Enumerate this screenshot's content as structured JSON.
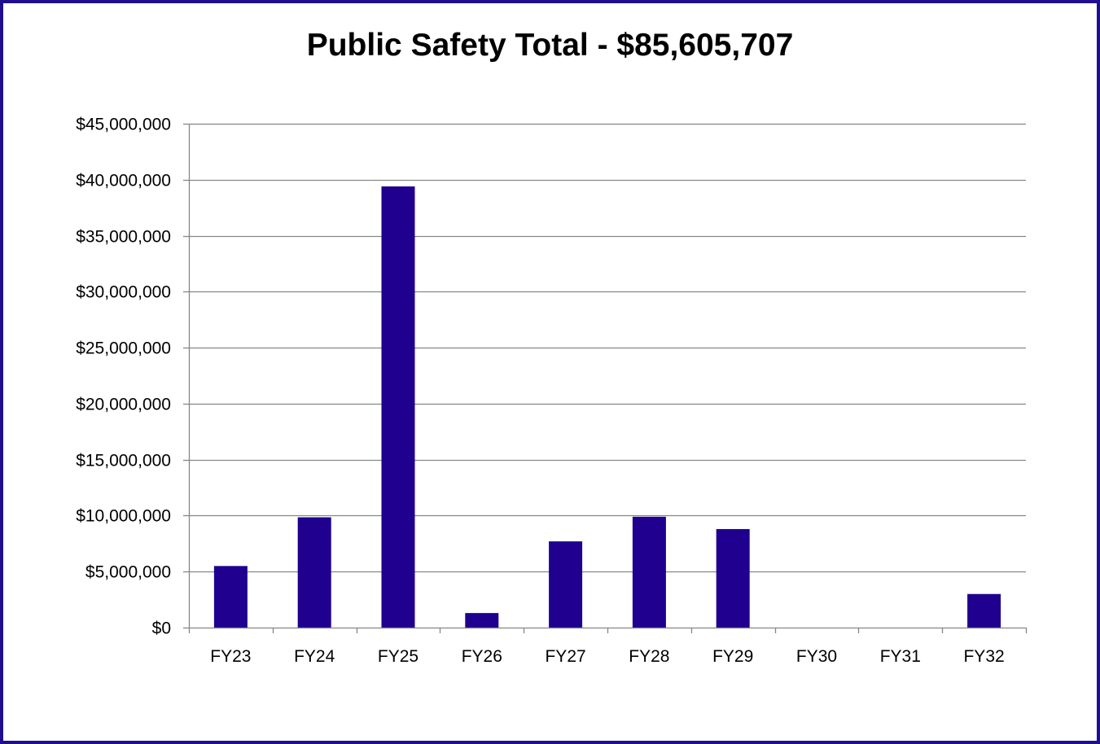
{
  "chart_data": {
    "type": "bar",
    "title": "Public Safety Total - $85,605,707",
    "xlabel": "",
    "ylabel": "",
    "categories": [
      "FY23",
      "FY24",
      "FY25",
      "FY26",
      "FY27",
      "FY28",
      "FY29",
      "FY30",
      "FY31",
      "FY32"
    ],
    "values": [
      5500000,
      9850000,
      39400000,
      1300000,
      7700000,
      9900000,
      8800000,
      0,
      0,
      3000000
    ],
    "ylim": [
      0,
      45000000
    ],
    "y_ticks": [
      "$0",
      "$5,000,000",
      "$10,000,000",
      "$15,000,000",
      "$20,000,000",
      "$25,000,000",
      "$30,000,000",
      "$35,000,000",
      "$40,000,000",
      "$45,000,000"
    ],
    "y_tick_values": [
      0,
      5000000,
      10000000,
      15000000,
      20000000,
      25000000,
      30000000,
      35000000,
      40000000,
      45000000
    ],
    "grid": true,
    "legend": "none",
    "colors": {
      "bar": "#1F008F",
      "frame": "#1F0F8F",
      "grid": "#868686",
      "axis": "#868686"
    }
  }
}
